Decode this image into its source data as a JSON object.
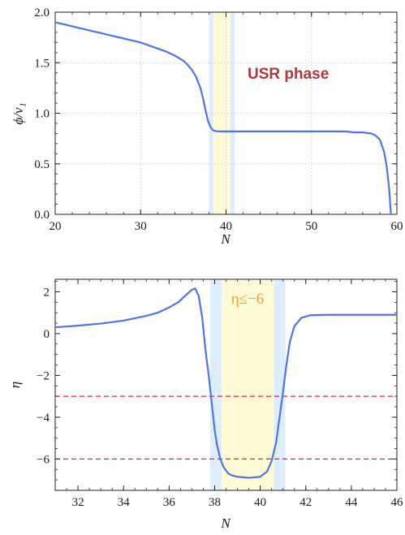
{
  "chart_data": [
    {
      "type": "line",
      "title": "",
      "xlabel": "N",
      "ylabel": "ϕ/v₁",
      "xlim": [
        20,
        60
      ],
      "ylim": [
        0,
        2
      ],
      "xticks": [
        "20",
        "30",
        "40",
        "50",
        "60"
      ],
      "yticks": [
        "0.0",
        "0.5",
        "1.0",
        "1.5",
        "2.0"
      ],
      "grid": true,
      "series": [
        {
          "color": "#4f74e8",
          "x": [
            20,
            22,
            24,
            26,
            28,
            30,
            32,
            33,
            34,
            35,
            35.5,
            36,
            36.5,
            37,
            37.3,
            37.6,
            37.9,
            38.2,
            38.5,
            39,
            40,
            42,
            45,
            48,
            50,
            52,
            54,
            55,
            56,
            57,
            57.5,
            58,
            58.5,
            58.8,
            59.1,
            59.3
          ],
          "y": [
            1.9,
            1.86,
            1.82,
            1.78,
            1.74,
            1.7,
            1.64,
            1.61,
            1.57,
            1.52,
            1.48,
            1.43,
            1.36,
            1.25,
            1.15,
            1.03,
            0.92,
            0.86,
            0.83,
            0.82,
            0.82,
            0.82,
            0.82,
            0.82,
            0.82,
            0.82,
            0.82,
            0.81,
            0.81,
            0.8,
            0.78,
            0.74,
            0.62,
            0.48,
            0.25,
            0.0
          ]
        }
      ],
      "shaded_regions": [
        {
          "x": [
            38,
            41
          ],
          "color": "#dceeff"
        },
        {
          "x": [
            38.5,
            40.5
          ],
          "color": "#fffbd6"
        }
      ],
      "annotations": [
        {
          "text": "USR phase",
          "color": "#b0363a"
        }
      ]
    },
    {
      "type": "line",
      "title": "",
      "xlabel": "N",
      "ylabel": "η",
      "xlim": [
        31,
        46
      ],
      "ylim": [
        -7.5,
        2.6
      ],
      "xticks": [
        "32",
        "34",
        "36",
        "38",
        "40",
        "42",
        "44",
        "46"
      ],
      "yticks": [
        "2",
        "0",
        "−2",
        "−4",
        "−6"
      ],
      "ytick_values": [
        2,
        0,
        -2,
        -4,
        -6
      ],
      "grid": false,
      "series": [
        {
          "color": "#4f74e8",
          "x": [
            31,
            32,
            33,
            34,
            35,
            35.5,
            36,
            36.4,
            36.7,
            37,
            37.15,
            37.3,
            37.45,
            37.6,
            37.75,
            37.9,
            38,
            38.1,
            38.25,
            38.4,
            38.6,
            38.8,
            39,
            39.5,
            40,
            40.3,
            40.5,
            40.7,
            40.85,
            41,
            41.15,
            41.3,
            41.5,
            41.8,
            42.2,
            43,
            44,
            46
          ],
          "y": [
            0.3,
            0.38,
            0.48,
            0.62,
            0.85,
            1.0,
            1.25,
            1.5,
            1.8,
            2.1,
            2.15,
            1.8,
            0.8,
            -0.8,
            -2.1,
            -3.6,
            -4.6,
            -5.3,
            -6.0,
            -6.4,
            -6.7,
            -6.8,
            -6.85,
            -6.9,
            -6.85,
            -6.6,
            -6.1,
            -5.2,
            -4.0,
            -2.8,
            -1.5,
            -0.4,
            0.35,
            0.75,
            0.88,
            0.9,
            0.9,
            0.9
          ]
        }
      ],
      "reference_lines": [
        {
          "y": -3,
          "color": "#e8222b",
          "style": "dashed"
        },
        {
          "y": -6,
          "color": "#e8222b",
          "style": "dashed"
        }
      ],
      "shaded_regions": [
        {
          "x": [
            37.8,
            41.1
          ],
          "color": "#dceeff"
        },
        {
          "x": [
            38.3,
            40.6
          ],
          "color": "#fffbd6"
        }
      ],
      "annotations": [
        {
          "text": "η≤−6",
          "color": "#f39c1c"
        }
      ]
    }
  ]
}
